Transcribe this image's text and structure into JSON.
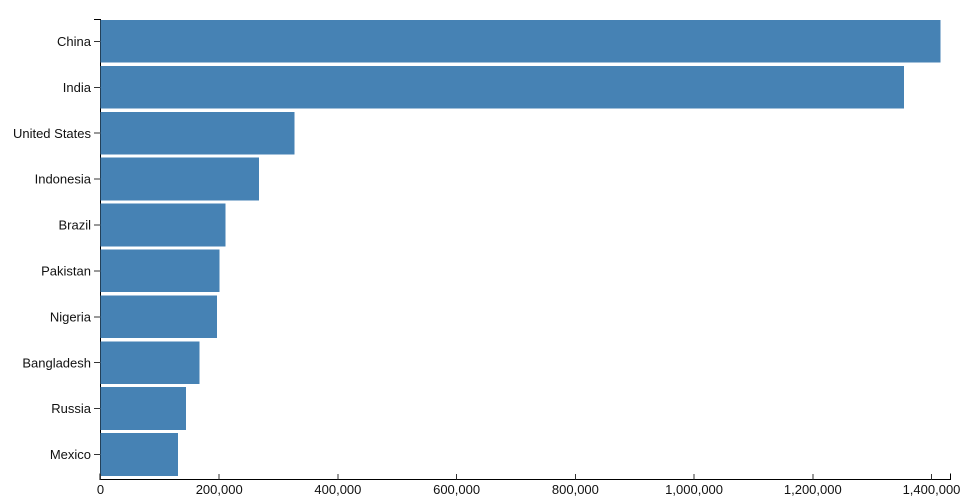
{
  "chart_data": {
    "type": "bar",
    "orientation": "horizontal",
    "title": "",
    "xlabel": "",
    "ylabel": "",
    "categories": [
      "China",
      "India",
      "United States",
      "Indonesia",
      "Brazil",
      "Pakistan",
      "Nigeria",
      "Bangladesh",
      "Russia",
      "Mexico"
    ],
    "values": [
      1415046,
      1354052,
      326767,
      266795,
      210868,
      200814,
      195875,
      166368,
      143965,
      130759
    ],
    "xlim": [
      0,
      1432000
    ],
    "x_ticks": [
      0,
      200000,
      400000,
      600000,
      800000,
      1000000,
      1200000,
      1400000
    ],
    "x_tick_labels": [
      "0",
      "200,000",
      "400,000",
      "600,000",
      "800,000",
      "1,000,000",
      "1,200,000",
      "1,400,000"
    ],
    "grid": false,
    "legend": "none",
    "colors": {
      "bar": "#4682b4",
      "axis_domain": "#000000",
      "tick_mark": "#333333",
      "tick_text": "#111111",
      "background": "#ffffff"
    }
  }
}
